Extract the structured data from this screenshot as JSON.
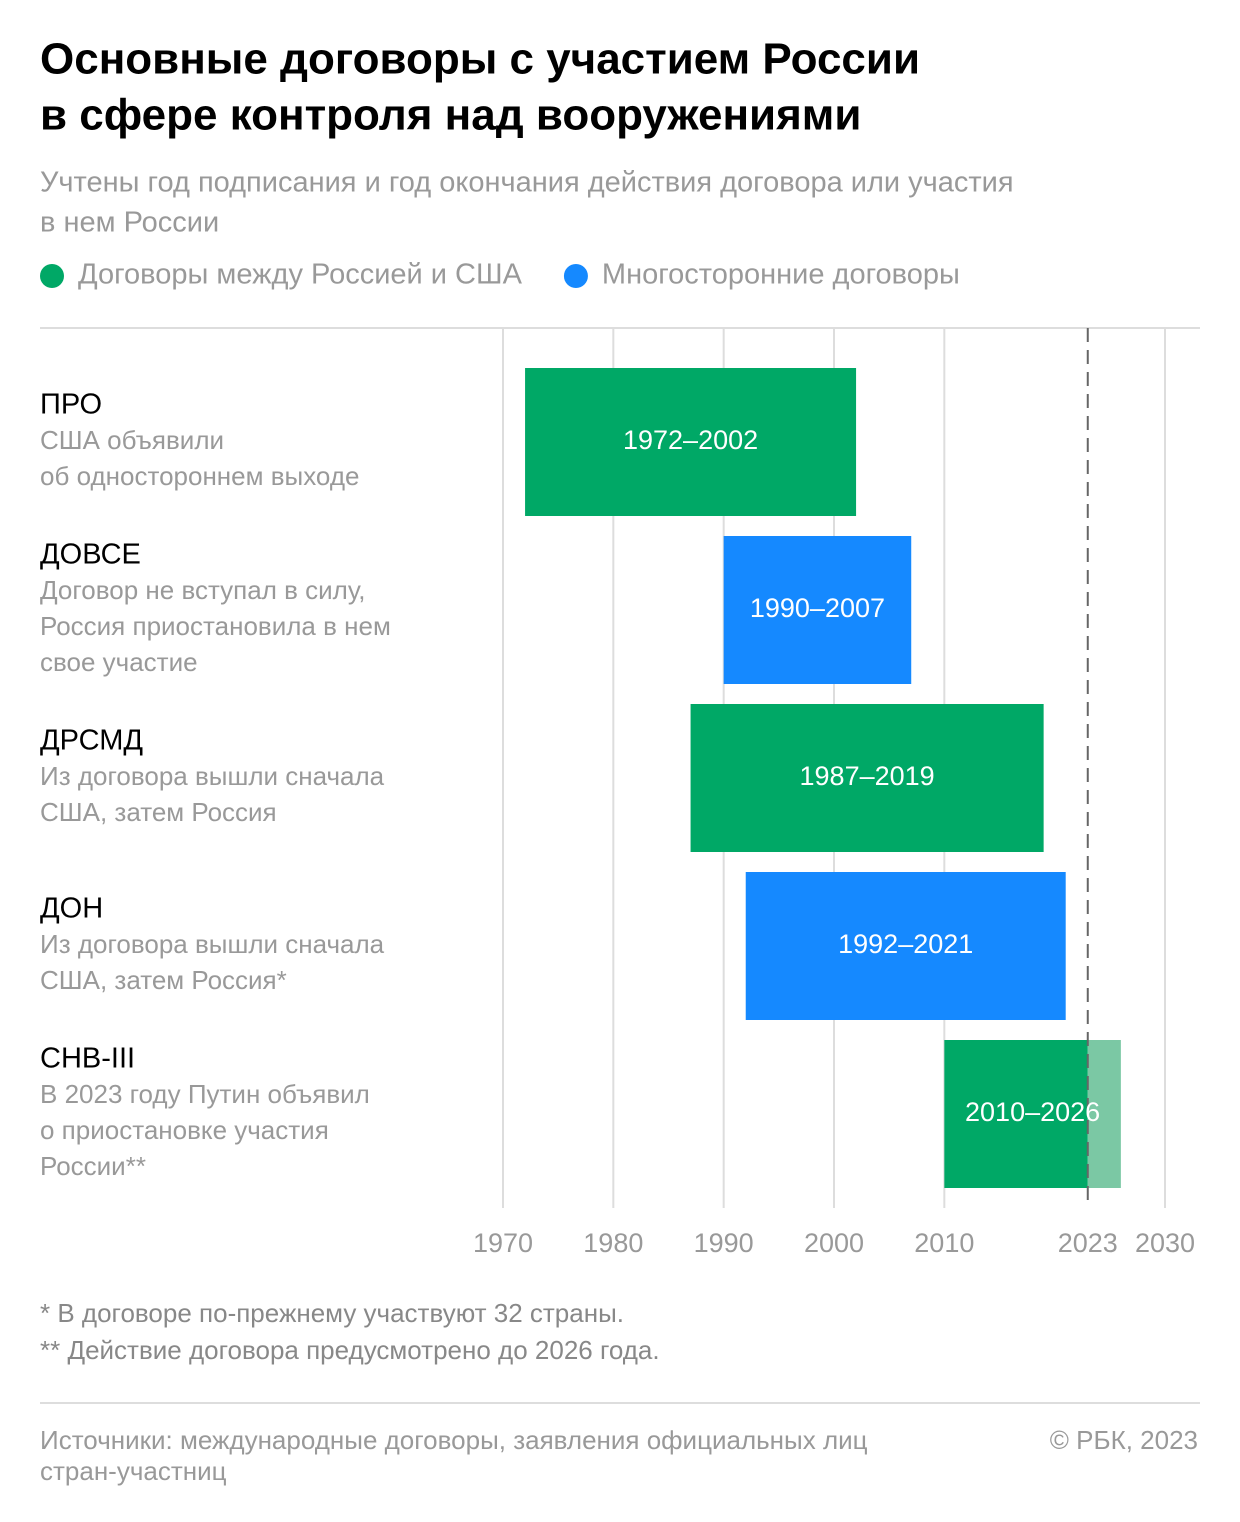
{
  "chart_data": {
    "type": "range_bar",
    "title": [
      "Основные договоры с участием России",
      "в сфере контроля над вооружениями"
    ],
    "subtitle": [
      "Учтены год подписания и год окончания действия договора или участия",
      "в нем России"
    ],
    "series": [
      {
        "name": "Договоры между Россией и США",
        "color": "#00a866",
        "suspended_color": "#7bc8a4"
      },
      {
        "name": "Многосторонние договоры",
        "color": "#1589ff"
      }
    ],
    "items": [
      {
        "name": "ПРО",
        "note": [
          "США объявили",
          "об одностороннем выходе"
        ],
        "series": 0,
        "start": 1972,
        "end": 2002,
        "value_label": "1972–2002"
      },
      {
        "name": "ДОВСЕ",
        "note": [
          "Договор не вступал в силу,",
          "Россия приостановила в нем",
          "свое участие"
        ],
        "series": 1,
        "start": 1990,
        "end": 2007,
        "value_label": "1990–2007"
      },
      {
        "name": "ДРСМД",
        "note": [
          "Из договора вышли сначала",
          "США, затем Россия"
        ],
        "series": 0,
        "start": 1987,
        "end": 2019,
        "value_label": "1987–2019"
      },
      {
        "name": "ДОН",
        "note": [
          "Из договора вышли сначала",
          "США, затем Россия*"
        ],
        "series": 1,
        "start": 1992,
        "end": 2021,
        "value_label": "1992–2021"
      },
      {
        "name": "СНВ-III",
        "note": [
          "В 2023 году Путин объявил",
          "о приостановке участия",
          "России**"
        ],
        "series": 0,
        "start": 2010,
        "end": 2026,
        "suspended": 2023,
        "value_label": "2010–2026"
      }
    ],
    "xlim": [
      1970,
      2030
    ],
    "xticks": [
      1970,
      1980,
      1990,
      2000,
      2010,
      2023,
      2030
    ],
    "dashed_ticks": [
      2023
    ],
    "grid": true,
    "footnotes": [
      "* В договоре по-прежнему участвуют 32 страны.",
      "** Действие договора предусмотрено до 2026 года."
    ],
    "source": [
      "Источники: международные договоры, заявления официальных лиц",
      "стран-участниц"
    ],
    "copyright": "© РБК, 2023"
  }
}
